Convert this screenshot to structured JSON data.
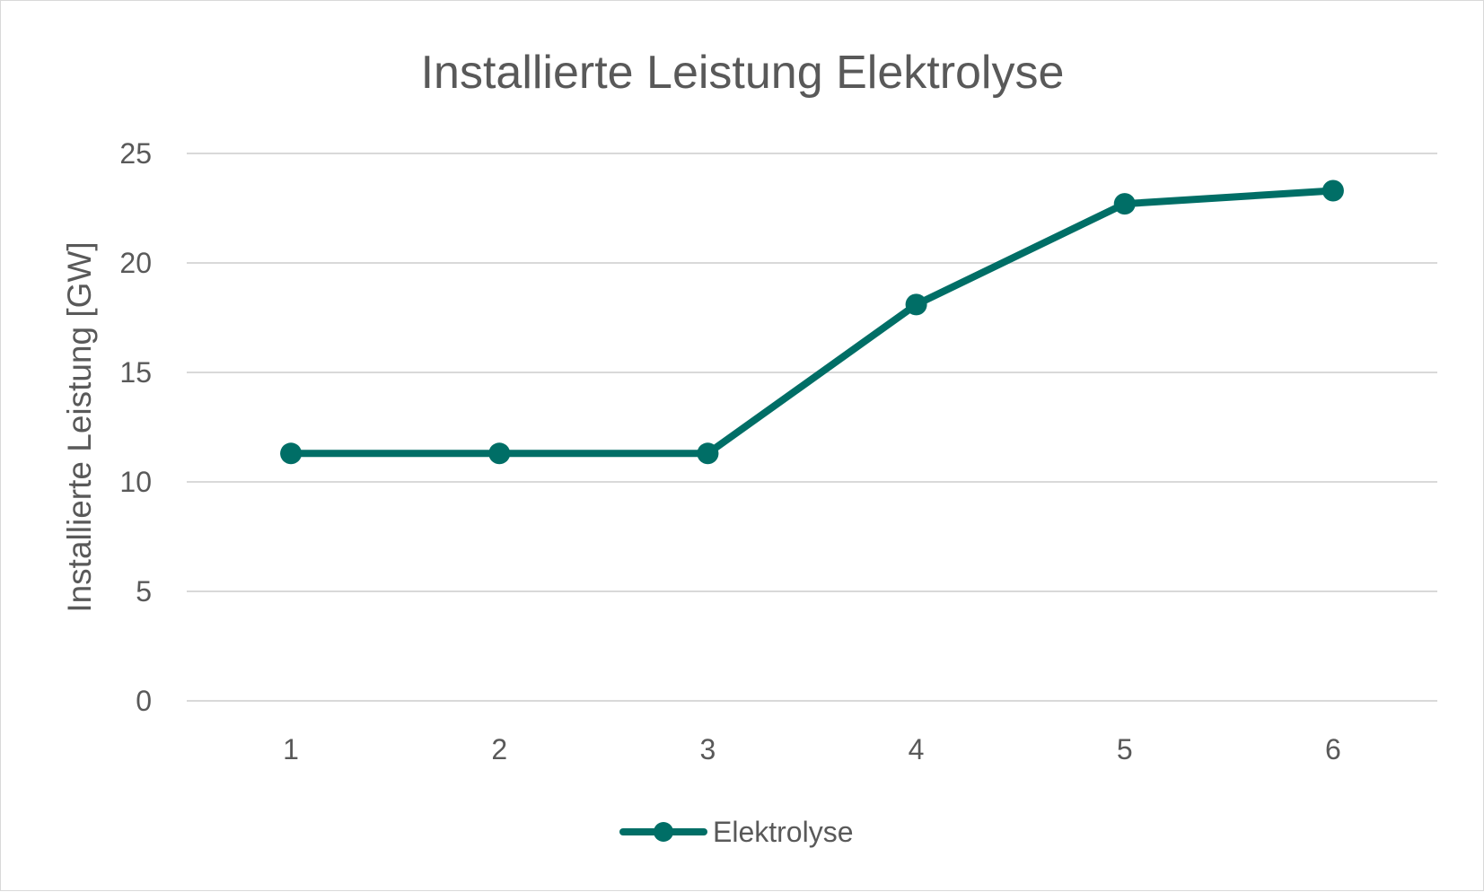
{
  "chart_data": {
    "type": "line",
    "title": "Installierte Leistung Elektrolyse",
    "xlabel": "",
    "ylabel": "Installierte Leistung  [GW]",
    "categories": [
      "1",
      "2",
      "3",
      "4",
      "5",
      "6"
    ],
    "series": [
      {
        "name": "Elektrolyse",
        "values": [
          11.3,
          11.3,
          11.3,
          18.1,
          22.7,
          23.3
        ],
        "color": "#006e66"
      }
    ],
    "ylim": [
      0,
      25
    ],
    "yticks": [
      "0",
      "5",
      "10",
      "15",
      "20",
      "25"
    ],
    "grid": true,
    "gridColor": "#d9d9d9",
    "legend_position": "bottom"
  }
}
